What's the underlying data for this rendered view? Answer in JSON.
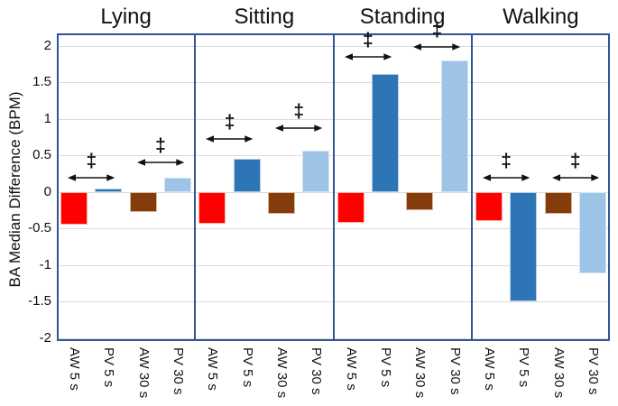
{
  "chart_data": {
    "type": "bar",
    "title": "",
    "ylabel": "BA Median Difference (BPM)",
    "xlabel": "",
    "ylim": [
      -2.04,
      2.17
    ],
    "grid": true,
    "legend_position": "none",
    "yticks": [
      2,
      1.5,
      1,
      0.5,
      0,
      -0.5,
      -1,
      -1.5,
      -2
    ],
    "ytick_labels": [
      "2",
      "1.5",
      "1",
      "0.5",
      "0",
      "-0.5",
      "-1",
      "-1.5",
      "-2"
    ],
    "categories": [
      "AW 5 s",
      "PV 5 s",
      "AW 30 s",
      "PV 30 s"
    ],
    "bar_colors": [
      "#FF0000",
      "#2E75B6",
      "#843C0C",
      "#9DC3E6"
    ],
    "bar_edge_colors": [
      "#ffb3aa",
      "#b2cde9",
      "#d9b69c",
      "#d4e5f5"
    ],
    "panels": [
      {
        "title": "Lying",
        "values": [
          -0.45,
          0.05,
          -0.27,
          0.19
        ],
        "annotations": [
          {
            "pair": [
              0,
              1
            ],
            "arrow_y": 0.2,
            "symbol": "‡"
          },
          {
            "pair": [
              2,
              3
            ],
            "arrow_y": 0.41,
            "symbol": "‡"
          }
        ]
      },
      {
        "title": "Sitting",
        "values": [
          -0.44,
          0.45,
          -0.3,
          0.56
        ],
        "annotations": [
          {
            "pair": [
              0,
              1
            ],
            "arrow_y": 0.73,
            "symbol": "‡"
          },
          {
            "pair": [
              2,
              3
            ],
            "arrow_y": 0.87,
            "symbol": "‡"
          }
        ]
      },
      {
        "title": "Standing",
        "values": [
          -0.42,
          1.62,
          -0.25,
          1.8
        ],
        "annotations": [
          {
            "pair": [
              0,
              1
            ],
            "arrow_y": 1.85,
            "symbol": "‡"
          },
          {
            "pair": [
              2,
              3
            ],
            "arrow_y": 1.98,
            "symbol": "‡"
          }
        ]
      },
      {
        "title": "Walking",
        "values": [
          -0.4,
          -1.5,
          -0.3,
          -1.12
        ],
        "annotations": [
          {
            "pair": [
              0,
              1
            ],
            "arrow_y": 0.2,
            "symbol": "‡"
          },
          {
            "pair": [
              2,
              3
            ],
            "arrow_y": 0.2,
            "symbol": "‡"
          }
        ]
      }
    ],
    "colors": {
      "panel_border": "#2F5597",
      "gridline": "#DBDBDB",
      "annotation": "#111111",
      "text": "#111111",
      "background": "#FFFFFF"
    }
  }
}
